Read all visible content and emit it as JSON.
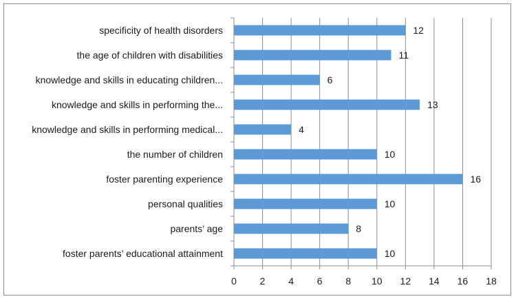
{
  "chart_data": {
    "type": "bar",
    "orientation": "horizontal",
    "categories": [
      "specificity of health disorders",
      "the age of children with disabilities",
      "knowledge and skills in educating children...",
      "knowledge and skills in performing the...",
      "knowledge and skills in performing medical...",
      "the number of children",
      "foster parenting experience",
      "personal qualities",
      "parents’ age",
      "foster parents’ educational attainment"
    ],
    "values": [
      12,
      11,
      6,
      13,
      4,
      10,
      16,
      10,
      8,
      10
    ],
    "title": "",
    "xlabel": "",
    "ylabel": "",
    "xlim": [
      0,
      18
    ],
    "xticks": [
      0,
      2,
      4,
      6,
      8,
      10,
      12,
      14,
      16,
      18
    ],
    "grid": "vertical",
    "legend": "none",
    "bar_color": "#5b9bd5"
  }
}
